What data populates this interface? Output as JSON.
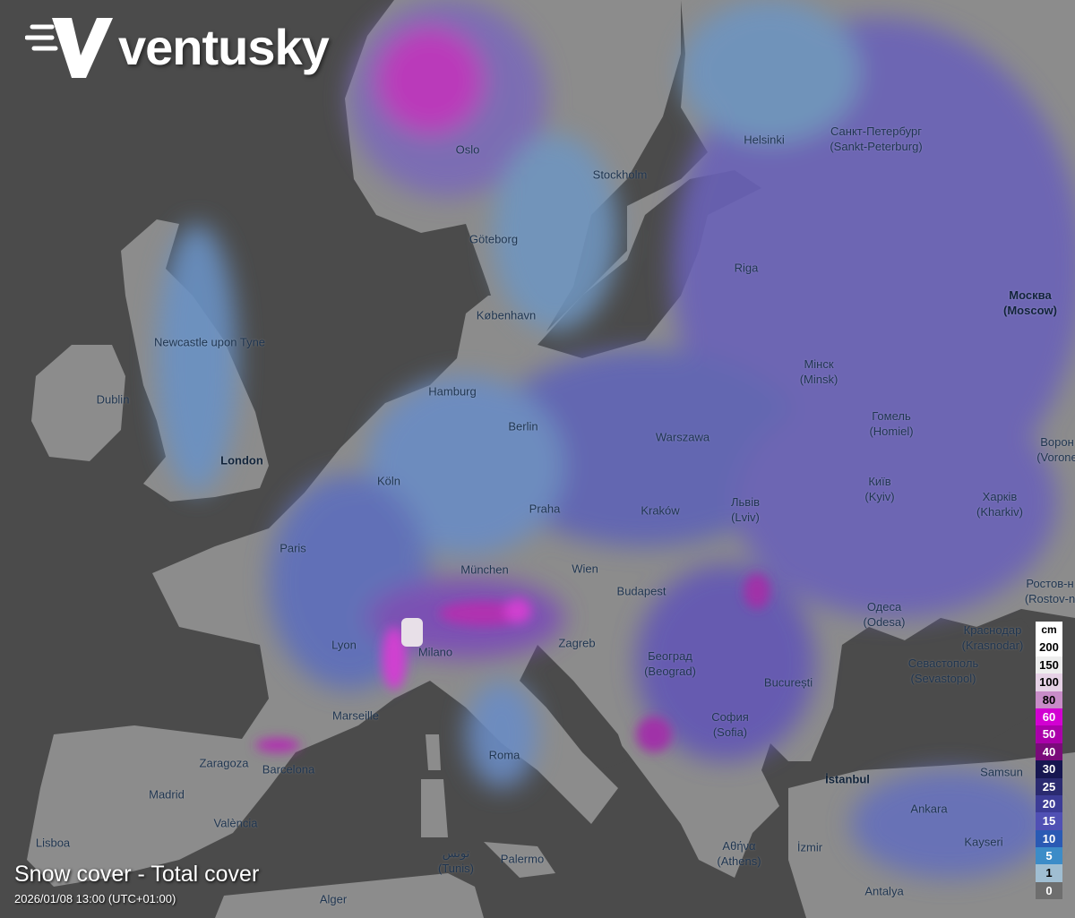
{
  "brand": {
    "name": "ventusky"
  },
  "layer": {
    "title": "Snow cover - Total cover",
    "datetime": "2026/01/08 13:00 (UTC+01:00)"
  },
  "legend": {
    "unit": "cm",
    "steps": [
      {
        "label": "200",
        "color": "#ffffff",
        "text": "#000000"
      },
      {
        "label": "150",
        "color": "#eeeeee",
        "text": "#000000"
      },
      {
        "label": "100",
        "color": "#e6d2e6",
        "text": "#000000"
      },
      {
        "label": "80",
        "color": "#c88cc8",
        "text": "#000000"
      },
      {
        "label": "60",
        "color": "#d200d2",
        "text": "#ffffff"
      },
      {
        "label": "50",
        "color": "#aa00aa",
        "text": "#ffffff"
      },
      {
        "label": "40",
        "color": "#7a0a7a",
        "text": "#ffffff"
      },
      {
        "label": "30",
        "color": "#161650",
        "text": "#ffffff"
      },
      {
        "label": "25",
        "color": "#2a2a70",
        "text": "#ffffff"
      },
      {
        "label": "20",
        "color": "#3c3c96",
        "text": "#ffffff"
      },
      {
        "label": "15",
        "color": "#5050b4",
        "text": "#ffffff"
      },
      {
        "label": "10",
        "color": "#2a5ab4",
        "text": "#ffffff"
      },
      {
        "label": "5",
        "color": "#3c8cc8",
        "text": "#ffffff"
      },
      {
        "label": "1",
        "color": "#a0bed2",
        "text": "#000000"
      },
      {
        "label": "0",
        "color": "#6e6e6e",
        "text": "#ffffff"
      }
    ]
  },
  "cities": [
    {
      "name": "Oslo"
    },
    {
      "name": "Stockholm"
    },
    {
      "name": "Helsinki"
    },
    {
      "name": "Санкт-Петербург",
      "alt": "(Sankt-Peterburg)"
    },
    {
      "name": "Göteborg"
    },
    {
      "name": "Riga"
    },
    {
      "name": "Москва",
      "alt": "(Moscow)"
    },
    {
      "name": "København"
    },
    {
      "name": "Newcastle upon Tyne"
    },
    {
      "name": "Dublin"
    },
    {
      "name": "Hamburg"
    },
    {
      "name": "Мінск",
      "alt": "(Minsk)"
    },
    {
      "name": "Berlin"
    },
    {
      "name": "Warszawa"
    },
    {
      "name": "Гомель",
      "alt": "(Homiel)"
    },
    {
      "name": "Ворон",
      "alt": "(Vorone"
    },
    {
      "name": "London"
    },
    {
      "name": "Köln"
    },
    {
      "name": "Київ",
      "alt": "(Kyiv)"
    },
    {
      "name": "Praha"
    },
    {
      "name": "Kraków"
    },
    {
      "name": "Львів",
      "alt": "(Lviv)"
    },
    {
      "name": "Харків",
      "alt": "(Kharkiv)"
    },
    {
      "name": "Paris"
    },
    {
      "name": "München"
    },
    {
      "name": "Wien"
    },
    {
      "name": "Budapest"
    },
    {
      "name": "Ростов-н",
      "alt": "(Rostov-n"
    },
    {
      "name": "Одеса",
      "alt": "(Odesa)"
    },
    {
      "name": "Lyon"
    },
    {
      "name": "Zagreb"
    },
    {
      "name": "Milano"
    },
    {
      "name": "Београд",
      "alt": "(Beograd)"
    },
    {
      "name": "Севастополь",
      "alt": "(Sevastopol)"
    },
    {
      "name": "Краснодар",
      "alt": "(Krasnodar)"
    },
    {
      "name": "București"
    },
    {
      "name": "Marseille"
    },
    {
      "name": "София",
      "alt": "(Sofia)"
    },
    {
      "name": "Zaragoza"
    },
    {
      "name": "Barcelona"
    },
    {
      "name": "Roma"
    },
    {
      "name": "Samsun"
    },
    {
      "name": "İstanbul"
    },
    {
      "name": "Madrid"
    },
    {
      "name": "Ankara"
    },
    {
      "name": "València"
    },
    {
      "name": "Lisboa"
    },
    {
      "name": "Kayseri"
    },
    {
      "name": "Αθήνα",
      "alt": "(Athens)"
    },
    {
      "name": "İzmir"
    },
    {
      "name": "Palermo"
    },
    {
      "name": "تونس",
      "alt": "(Tunis)"
    },
    {
      "name": "Alger"
    },
    {
      "name": "Antalya"
    }
  ]
}
